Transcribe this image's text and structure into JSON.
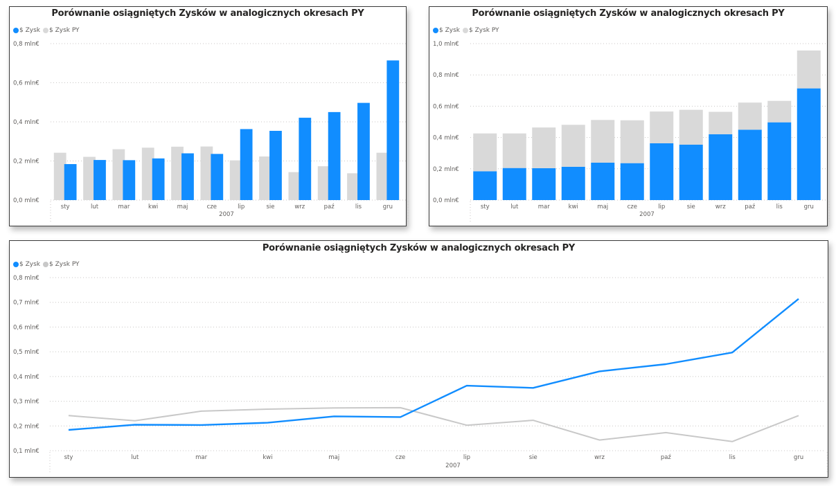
{
  "colors": {
    "zysk": "#118dff",
    "zysk_py": "#d9d9d9",
    "grid": "#c8c6c4"
  },
  "chart_data": [
    {
      "type": "bar",
      "variant": "clustered",
      "title": "Porównanie osiągniętych Zysków w analogicznych okresach PY",
      "legend": [
        {
          "label": "$ Zysk",
          "color": "#118dff"
        },
        {
          "label": "$ Zysk PY",
          "color": "#d9d9d9"
        }
      ],
      "legend_position": "top-left",
      "categories": [
        "sty",
        "lut",
        "mar",
        "kwi",
        "maj",
        "cze",
        "lip",
        "sie",
        "wrz",
        "paź",
        "lis",
        "gru"
      ],
      "series": [
        {
          "name": "$ Zysk PY",
          "values": [
            0.242,
            0.221,
            0.26,
            0.268,
            0.273,
            0.274,
            0.203,
            0.223,
            0.143,
            0.173,
            0.137,
            0.242
          ]
        },
        {
          "name": "$ Zysk",
          "values": [
            0.184,
            0.205,
            0.204,
            0.213,
            0.239,
            0.236,
            0.363,
            0.354,
            0.421,
            0.45,
            0.497,
            0.714
          ]
        }
      ],
      "xlabel": "2007",
      "ylabel": "",
      "ylim": [
        0,
        0.8
      ],
      "yticks": [
        0,
        0.2,
        0.4,
        0.6,
        0.8
      ],
      "ytick_labels": [
        "0,0 mln€",
        "0,2 mln€",
        "0,4 mln€",
        "0,6 mln€",
        "0,8 mln€"
      ],
      "grid": true
    },
    {
      "type": "bar",
      "variant": "stacked",
      "title": "Porównanie osiągniętych Zysków w analogicznych okresach PY",
      "legend": [
        {
          "label": "$ Zysk",
          "color": "#118dff"
        },
        {
          "label": "$ Zysk PY",
          "color": "#d9d9d9"
        }
      ],
      "legend_position": "top-left",
      "categories": [
        "sty",
        "lut",
        "mar",
        "kwi",
        "maj",
        "cze",
        "lip",
        "sie",
        "wrz",
        "paź",
        "lis",
        "gru"
      ],
      "series": [
        {
          "name": "$ Zysk",
          "values": [
            0.184,
            0.205,
            0.204,
            0.213,
            0.239,
            0.236,
            0.363,
            0.354,
            0.421,
            0.45,
            0.497,
            0.714
          ]
        },
        {
          "name": "$ Zysk PY",
          "values": [
            0.242,
            0.221,
            0.26,
            0.268,
            0.273,
            0.274,
            0.203,
            0.223,
            0.143,
            0.173,
            0.137,
            0.242
          ]
        }
      ],
      "xlabel": "2007",
      "ylabel": "",
      "ylim": [
        0,
        1.0
      ],
      "yticks": [
        0,
        0.2,
        0.4,
        0.6,
        0.8,
        1.0
      ],
      "ytick_labels": [
        "0,0 mln€",
        "0,2 mln€",
        "0,4 mln€",
        "0,6 mln€",
        "0,8 mln€",
        "1,0 mln€"
      ],
      "grid": true
    },
    {
      "type": "line",
      "title": "Porównanie osiągniętych Zysków w analogicznych okresach PY",
      "legend": [
        {
          "label": "$ Zysk",
          "color": "#118dff"
        },
        {
          "label": "$ Zysk PY",
          "color": "#c8c8c8"
        }
      ],
      "legend_position": "top-left",
      "categories": [
        "sty",
        "lut",
        "mar",
        "kwi",
        "maj",
        "cze",
        "lip",
        "sie",
        "wrz",
        "paź",
        "lis",
        "gru"
      ],
      "series": [
        {
          "name": "$ Zysk PY",
          "values": [
            0.242,
            0.221,
            0.26,
            0.268,
            0.273,
            0.274,
            0.203,
            0.223,
            0.143,
            0.173,
            0.137,
            0.242
          ]
        },
        {
          "name": "$ Zysk",
          "values": [
            0.184,
            0.205,
            0.204,
            0.213,
            0.239,
            0.236,
            0.363,
            0.354,
            0.421,
            0.45,
            0.497,
            0.714
          ]
        }
      ],
      "xlabel": "2007",
      "ylabel": "",
      "ylim": [
        0.1,
        0.8
      ],
      "yticks": [
        0.1,
        0.2,
        0.3,
        0.4,
        0.5,
        0.6,
        0.7,
        0.8
      ],
      "ytick_labels": [
        "0,1 mln€",
        "0,2 mln€",
        "0,3 mln€",
        "0,4 mln€",
        "0,5 mln€",
        "0,6 mln€",
        "0,7 mln€",
        "0,8 mln€"
      ],
      "grid": true
    }
  ]
}
